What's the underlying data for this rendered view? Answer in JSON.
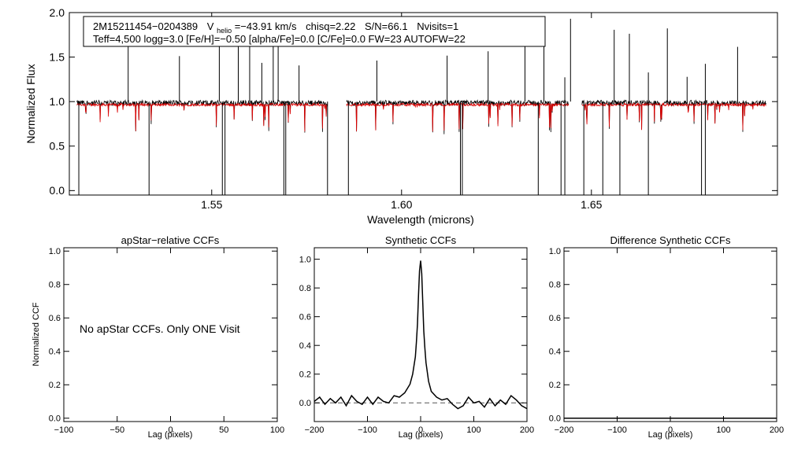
{
  "chart_data": [
    {
      "type": "line",
      "panel": "spectrum",
      "title": "",
      "header_line1": {
        "id": "2M15211454−0204389",
        "v_label": "V",
        "v_sub": "helio",
        "v_value": "=−43.91 km/s",
        "chisq": "chisq=2.22",
        "sn": "S/N=66.1",
        "nvisits": "Nvisits=1"
      },
      "header_line2": "Teff=4,500 logg=3.0 [Fe/H]=−0.50 [alpha/Fe]=0.0 [C/Fe]=0.0 FW=23 AUTOFW=22",
      "xlabel": "Wavelength (microns)",
      "ylabel": "Normalized Flux",
      "xlim": [
        1.5125,
        1.699
      ],
      "ylim": [
        -0.05,
        2.0
      ],
      "xticks": [
        1.55,
        1.6,
        1.65
      ],
      "xtick_labels": [
        "1.55",
        "1.60",
        "1.65"
      ],
      "yticks": [
        0.0,
        0.5,
        1.0,
        1.5,
        2.0
      ],
      "ytick_labels": [
        "0.0",
        "0.5",
        "1.0",
        "1.5",
        "2.0"
      ],
      "chip_ranges": [
        [
          1.5145,
          1.5805
        ],
        [
          1.5855,
          1.644
        ],
        [
          1.6475,
          1.696
        ]
      ],
      "series": [
        {
          "name": "observed",
          "color": "#000000"
        },
        {
          "name": "model",
          "color": "#dd0000"
        }
      ],
      "spikes_up": [
        1.528,
        1.5415,
        1.552,
        1.557,
        1.56,
        1.5632,
        1.5662,
        1.5675,
        1.573,
        1.5935,
        1.612,
        1.6228,
        1.6325,
        1.6375,
        1.643,
        1.6445,
        1.656,
        1.66,
        1.665,
        1.67,
        1.6752,
        1.68,
        1.6885
      ],
      "spikes_down": [
        1.515,
        1.5335,
        1.5528,
        1.5535,
        1.569,
        1.5695,
        1.5805,
        1.586,
        1.6155,
        1.616,
        1.636,
        1.642,
        1.643,
        1.648,
        1.653,
        1.6575,
        1.665,
        1.679,
        1.68
      ]
    },
    {
      "type": "line",
      "panel": "apstar_ccf",
      "title": "apStar−relative CCFs",
      "xlabel": "Lag (pixels)",
      "ylabel": "Normalized CCF",
      "xlim": [
        -100,
        100
      ],
      "ylim": [
        -0.02,
        1.02
      ],
      "xticks": [
        -100,
        -50,
        0,
        50,
        100
      ],
      "xtick_labels": [
        "−100",
        "−50",
        "0",
        "50",
        "100"
      ],
      "yticks": [
        0.0,
        0.2,
        0.4,
        0.6,
        0.8,
        1.0
      ],
      "ytick_labels": [
        "0.0",
        "0.2",
        "0.4",
        "0.6",
        "0.8",
        "1.0"
      ],
      "annotation": "No apStar CCFs.  Only ONE Visit",
      "series": []
    },
    {
      "type": "line",
      "panel": "synthetic_ccf",
      "title": "Synthetic CCFs",
      "xlabel": "Lag (pixels)",
      "ylabel": "",
      "xlim": [
        -200,
        200
      ],
      "ylim": [
        -0.13,
        1.08
      ],
      "xticks": [
        -200,
        -100,
        0,
        100,
        200
      ],
      "xtick_labels": [
        "−200",
        "−100",
        "0",
        "100",
        "200"
      ],
      "yticks": [
        0.0,
        0.2,
        0.4,
        0.6,
        0.8,
        1.0
      ],
      "ytick_labels": [
        "0.0",
        "0.2",
        "0.4",
        "0.6",
        "0.8",
        "1.0"
      ],
      "baseline": {
        "x": [
          -200,
          200
        ],
        "y": [
          0.0,
          0.0
        ],
        "style": "dashed",
        "color": "#555555"
      },
      "series": [
        {
          "name": "ccf",
          "color": "#000000",
          "x": [
            -200,
            -190,
            -180,
            -170,
            -160,
            -150,
            -140,
            -130,
            -120,
            -110,
            -100,
            -90,
            -80,
            -70,
            -60,
            -50,
            -40,
            -30,
            -20,
            -15,
            -10,
            -8,
            -6,
            -4,
            -2,
            0,
            2,
            4,
            6,
            8,
            10,
            15,
            20,
            30,
            40,
            50,
            60,
            70,
            80,
            90,
            100,
            110,
            120,
            130,
            140,
            150,
            160,
            170,
            180,
            190,
            200
          ],
          "y": [
            0.01,
            0.04,
            -0.01,
            0.03,
            0.0,
            0.04,
            -0.02,
            0.05,
            0.01,
            -0.01,
            0.04,
            -0.01,
            0.04,
            0.01,
            0.0,
            0.05,
            0.04,
            0.07,
            0.13,
            0.2,
            0.32,
            0.42,
            0.55,
            0.75,
            0.92,
            0.99,
            0.9,
            0.7,
            0.5,
            0.38,
            0.28,
            0.15,
            0.08,
            0.04,
            0.02,
            0.03,
            -0.01,
            -0.04,
            -0.02,
            0.04,
            0.0,
            0.01,
            -0.03,
            0.03,
            -0.02,
            0.02,
            -0.01,
            0.05,
            0.02,
            -0.02,
            -0.04
          ]
        }
      ]
    },
    {
      "type": "line",
      "panel": "difference_ccf",
      "title": "Difference Synthetic CCFs",
      "xlabel": "Lag (pixels)",
      "ylabel": "",
      "xlim": [
        -200,
        200
      ],
      "ylim": [
        -0.02,
        1.02
      ],
      "xticks": [
        -200,
        -100,
        0,
        100,
        200
      ],
      "xtick_labels": [
        "−200",
        "−100",
        "0",
        "100",
        "200"
      ],
      "yticks": [
        0.0,
        0.2,
        0.4,
        0.6,
        0.8,
        1.0
      ],
      "ytick_labels": [
        "0.0",
        "0.2",
        "0.4",
        "0.6",
        "0.8",
        "1.0"
      ],
      "series": [
        {
          "name": "difference",
          "color": "#000000",
          "x": [
            -200,
            200
          ],
          "y": [
            0.0,
            0.0
          ]
        }
      ]
    }
  ]
}
